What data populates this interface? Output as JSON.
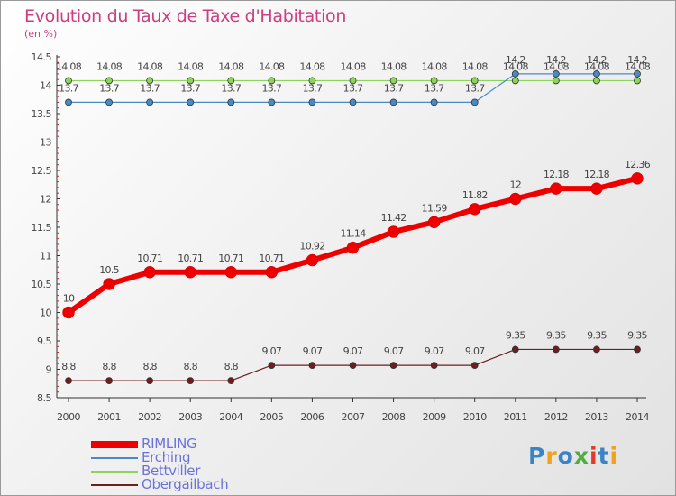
{
  "title": "Evolution du Taux de Taxe d'Habitation",
  "unit": "(en %)",
  "logo": {
    "text": "Proxiti",
    "colors": [
      "#3a84c6",
      "#f0a31a",
      "#3a84c6",
      "#4fae3c",
      "#e23b2c",
      "#3a84c6",
      "#f0a31a"
    ]
  },
  "chart_data": {
    "type": "line",
    "title": "Evolution du Taux de Taxe d'Habitation",
    "ylabel": "(en %)",
    "xlabel": "",
    "x": [
      "2000",
      "2001",
      "2002",
      "2003",
      "2004",
      "2005",
      "2006",
      "2007",
      "2008",
      "2009",
      "2010",
      "2011",
      "2012",
      "2013",
      "2014"
    ],
    "ylim": [
      8.5,
      14.5
    ],
    "yticks": [
      8.5,
      9,
      9.5,
      10,
      10.5,
      11,
      11.5,
      12,
      12.5,
      13,
      13.5,
      14,
      14.5
    ],
    "ytick_labels": [
      "8.5",
      "9",
      "9.5",
      "10",
      "10.5",
      "11",
      "11.5",
      "12",
      "12.5",
      "13",
      "13.5",
      "14",
      "14.5"
    ],
    "grid": false,
    "legend_position": "bottom-left",
    "series": [
      {
        "name": "RIMLING",
        "color": "#ee0000",
        "emphasis": true,
        "values": [
          10,
          10.5,
          10.71,
          10.71,
          10.71,
          10.71,
          10.92,
          11.14,
          11.42,
          11.59,
          11.82,
          12,
          12.18,
          12.18,
          12.36
        ],
        "labels": [
          "10",
          "10.5",
          "10.71",
          "10.71",
          "10.71",
          "10.71",
          "10.92",
          "11.14",
          "11.42",
          "11.59",
          "11.82",
          "12",
          "12.18",
          "12.18",
          "12.36"
        ]
      },
      {
        "name": "Erching",
        "color": "#4a8ac4",
        "values": [
          13.7,
          13.7,
          13.7,
          13.7,
          13.7,
          13.7,
          13.7,
          13.7,
          13.7,
          13.7,
          13.7,
          14.2,
          14.2,
          14.2,
          14.2
        ],
        "labels": [
          "13.7",
          "13.7",
          "13.7",
          "13.7",
          "13.7",
          "13.7",
          "13.7",
          "13.7",
          "13.7",
          "13.7",
          "13.7",
          "14.2",
          "14.2",
          "14.2",
          "14.2"
        ]
      },
      {
        "name": "Bettviller",
        "color": "#8dd45a",
        "values": [
          14.08,
          14.08,
          14.08,
          14.08,
          14.08,
          14.08,
          14.08,
          14.08,
          14.08,
          14.08,
          14.08,
          14.08,
          14.08,
          14.08,
          14.08
        ],
        "labels": [
          "14.08",
          "14.08",
          "14.08",
          "14.08",
          "14.08",
          "14.08",
          "14.08",
          "14.08",
          "14.08",
          "14.08",
          "14.08",
          "14.08",
          "14.08",
          "14.08",
          "14.08"
        ]
      },
      {
        "name": "Obergailbach",
        "color": "#6e1e1e",
        "values": [
          8.8,
          8.8,
          8.8,
          8.8,
          8.8,
          9.07,
          9.07,
          9.07,
          9.07,
          9.07,
          9.07,
          9.35,
          9.35,
          9.35,
          9.35
        ],
        "labels": [
          "8.8",
          "8.8",
          "8.8",
          "8.8",
          "8.8",
          "9.07",
          "9.07",
          "9.07",
          "9.07",
          "9.07",
          "9.07",
          "9.35",
          "9.35",
          "9.35",
          "9.35"
        ]
      }
    ]
  }
}
